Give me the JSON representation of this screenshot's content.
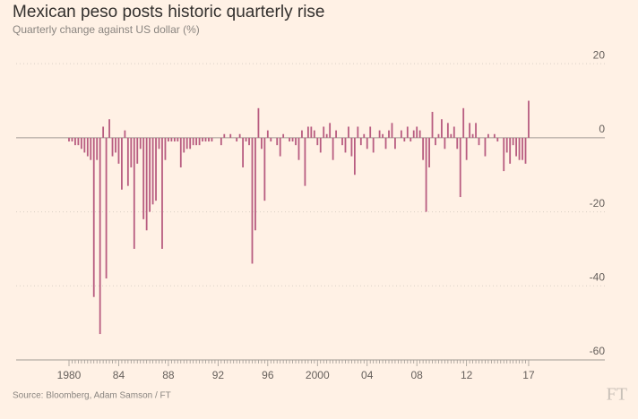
{
  "chart_data": {
    "type": "bar",
    "title": "Mexican peso posts historic quarterly rise",
    "subtitle": "Quarterly change against US dollar (%)",
    "source": "Source: Bloomberg, Adam Samson / FT",
    "logo": "FT",
    "color": "#b85c80",
    "grid": true,
    "ylim": [
      -60,
      25
    ],
    "yticks": [
      20,
      0,
      -20,
      -40,
      -60
    ],
    "categories": [
      "1980",
      null,
      null,
      null,
      null,
      null,
      null,
      null,
      null,
      null,
      null,
      null,
      null,
      null,
      null,
      null,
      "84",
      null,
      null,
      null,
      null,
      null,
      null,
      null,
      null,
      null,
      null,
      null,
      null,
      null,
      null,
      null,
      "88",
      null,
      null,
      null,
      null,
      null,
      null,
      null,
      null,
      null,
      null,
      null,
      null,
      null,
      null,
      null,
      "92",
      null,
      null,
      null,
      null,
      null,
      null,
      null,
      null,
      null,
      null,
      null,
      null,
      null,
      null,
      null,
      "96",
      null,
      null,
      null,
      null,
      null,
      null,
      null,
      null,
      null,
      null,
      null,
      null,
      null,
      null,
      null,
      "2000",
      null,
      null,
      null,
      null,
      null,
      null,
      null,
      null,
      null,
      null,
      null,
      null,
      null,
      null,
      null,
      "04",
      null,
      null,
      null,
      null,
      null,
      null,
      null,
      null,
      null,
      null,
      null,
      null,
      null,
      null,
      null,
      "08",
      null,
      null,
      null,
      null,
      null,
      null,
      null,
      null,
      null,
      null,
      null,
      null,
      null,
      null,
      null,
      "12",
      null,
      null,
      null,
      null,
      null,
      null,
      null,
      null,
      null,
      null,
      null,
      null,
      null,
      null,
      null,
      null,
      null,
      null,
      null,
      "17"
    ],
    "values": [
      -1,
      -1,
      -2,
      -2,
      -3,
      -4,
      -5,
      -6,
      -43,
      -6,
      -53,
      3,
      -38,
      5,
      -5,
      -4,
      -7,
      -14,
      2,
      -13,
      -8,
      -30,
      -7,
      -3,
      -22,
      -25,
      -20,
      -18,
      -17,
      -3,
      -30,
      -6,
      -1,
      -1,
      -1,
      -1,
      -8,
      -4,
      -3,
      -3,
      -2,
      -2,
      -2,
      -1,
      -1,
      -1,
      -1,
      0,
      0,
      -2,
      1,
      0,
      1,
      0,
      -1,
      1,
      -8,
      -1,
      -2,
      -34,
      -25,
      8,
      -3,
      -17,
      2,
      -1,
      0,
      -2,
      -5,
      1,
      0,
      -1,
      -1,
      -2,
      -6,
      2,
      -13,
      3,
      3,
      2,
      -2,
      -4,
      3,
      1,
      4,
      -6,
      2,
      0,
      -2,
      -4,
      3,
      -5,
      -10,
      3,
      -2,
      1,
      -3,
      3,
      -4,
      0,
      2,
      1,
      -3,
      2,
      4,
      -3,
      0,
      2,
      -1,
      3,
      -1,
      2,
      3,
      2,
      -6,
      -20,
      -8,
      7,
      -2,
      1,
      5,
      -3,
      4,
      1,
      3,
      -3,
      -16,
      8,
      -6,
      4,
      1,
      4,
      -2,
      0,
      -5,
      1,
      0,
      1,
      -1,
      0,
      -9,
      -4,
      -7,
      -2,
      -5,
      -6,
      -6,
      -7,
      10
    ]
  }
}
